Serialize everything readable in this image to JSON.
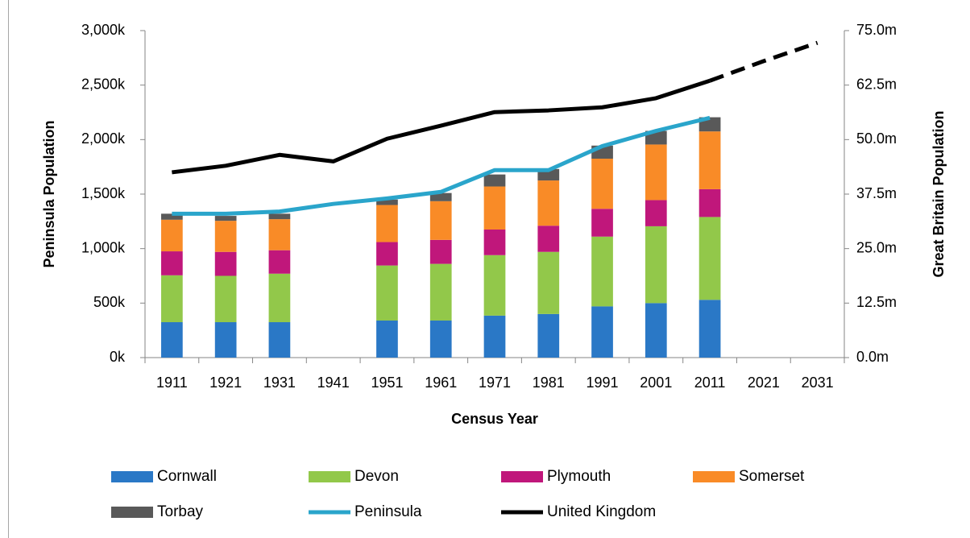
{
  "chart_data": {
    "type": "bar",
    "categories": [
      "1911",
      "1921",
      "1931",
      "1941",
      "1951",
      "1961",
      "1971",
      "1981",
      "1991",
      "2001",
      "2011",
      "2021",
      "2031"
    ],
    "x_label": "Census Year",
    "y_label": "Peninsula Population",
    "y2_label": "Great Britain Population",
    "ylim": [
      0,
      3000
    ],
    "yticks": [
      {
        "value": 0,
        "label": "0k"
      },
      {
        "value": 500,
        "label": "500k"
      },
      {
        "value": 1000,
        "label": "1,000k"
      },
      {
        "value": 1500,
        "label": "1,500k"
      },
      {
        "value": 2000,
        "label": "2,000k"
      },
      {
        "value": 2500,
        "label": "2,500k"
      },
      {
        "value": 3000,
        "label": "3,000k"
      }
    ],
    "y2lim": [
      0,
      75
    ],
    "y2ticks": [
      {
        "value": 0,
        "label": "0.0m"
      },
      {
        "value": 12.5,
        "label": "12.5m"
      },
      {
        "value": 25,
        "label": "25.0m"
      },
      {
        "value": 37.5,
        "label": "37.5m"
      },
      {
        "value": 50,
        "label": "50.0m"
      },
      {
        "value": 62.5,
        "label": "62.5m"
      },
      {
        "value": 75,
        "label": "75.0m"
      }
    ],
    "stacked": true,
    "series": [
      {
        "name": "Cornwall",
        "type": "bar",
        "color": "#2a78c6",
        "values": [
          325,
          325,
          325,
          null,
          340,
          340,
          385,
          400,
          470,
          500,
          530,
          null,
          null
        ]
      },
      {
        "name": "Devon",
        "type": "bar",
        "color": "#92c84a",
        "values": [
          430,
          425,
          445,
          null,
          505,
          520,
          555,
          570,
          640,
          705,
          760,
          null,
          null
        ]
      },
      {
        "name": "Plymouth",
        "type": "bar",
        "color": "#c0177b",
        "values": [
          220,
          220,
          215,
          null,
          215,
          220,
          235,
          240,
          255,
          240,
          255,
          null,
          null
        ]
      },
      {
        "name": "Somerset",
        "type": "bar",
        "color": "#f98b27",
        "values": [
          290,
          285,
          285,
          null,
          340,
          355,
          395,
          415,
          460,
          510,
          530,
          null,
          null
        ]
      },
      {
        "name": "Torbay",
        "type": "bar",
        "color": "#595959",
        "values": [
          55,
          45,
          50,
          null,
          50,
          75,
          110,
          105,
          120,
          125,
          130,
          null,
          null
        ]
      },
      {
        "name": "Peninsula",
        "type": "line",
        "color": "#2aa5cb",
        "values": [
          1320,
          1320,
          1340,
          1410,
          1460,
          1520,
          1720,
          1720,
          1940,
          2080,
          2200,
          null,
          null
        ]
      },
      {
        "name": "United Kingdom",
        "type": "line",
        "axis": "y2",
        "color": "#000000",
        "dashed_from_index": 10,
        "values": [
          42.5,
          44,
          46.5,
          45,
          50.2,
          53.2,
          56.3,
          56.7,
          57.4,
          59.5,
          63.5,
          68,
          72.2
        ]
      }
    ]
  }
}
